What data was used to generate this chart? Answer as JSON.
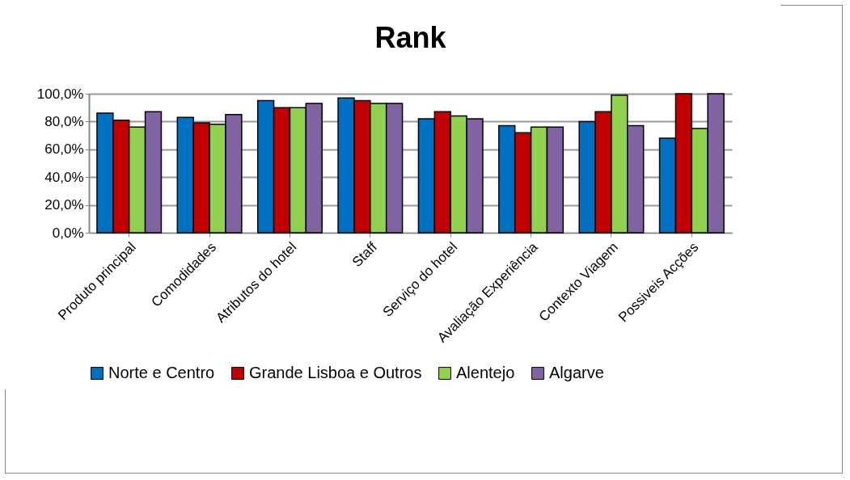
{
  "chart_data": {
    "type": "bar",
    "title": "Rank",
    "categories": [
      "Produto principal",
      "Comodidades",
      "Atributos do hotel",
      "Staff",
      "Serviço do hotel",
      "Avaliação Experiência",
      "Contexto Viagem",
      "Possiveis Acções"
    ],
    "series": [
      {
        "name": "Norte e Centro",
        "color": "#0070c0",
        "values": [
          86,
          83,
          95,
          97,
          82,
          77,
          80,
          68
        ]
      },
      {
        "name": "Grande Lisboa e Outros",
        "color": "#c00000",
        "values": [
          81,
          79,
          90,
          95,
          87,
          72,
          87,
          100
        ]
      },
      {
        "name": "Alentejo",
        "color": "#92d050",
        "values": [
          76,
          78,
          90,
          93,
          84,
          76,
          99,
          75
        ]
      },
      {
        "name": "Algarve",
        "color": "#8064a2",
        "values": [
          87,
          85,
          93,
          93,
          82,
          76,
          77,
          100
        ]
      }
    ],
    "ylim": [
      0,
      100
    ],
    "yticks": [
      {
        "value": 0,
        "label": "0,0%"
      },
      {
        "value": 20,
        "label": "20,0%"
      },
      {
        "value": 40,
        "label": "40,0%"
      },
      {
        "value": 60,
        "label": "60,0%"
      },
      {
        "value": 80,
        "label": "80,0%"
      },
      {
        "value": 100,
        "label": "100,0%"
      }
    ],
    "grid": "y",
    "legend": "bottom"
  }
}
